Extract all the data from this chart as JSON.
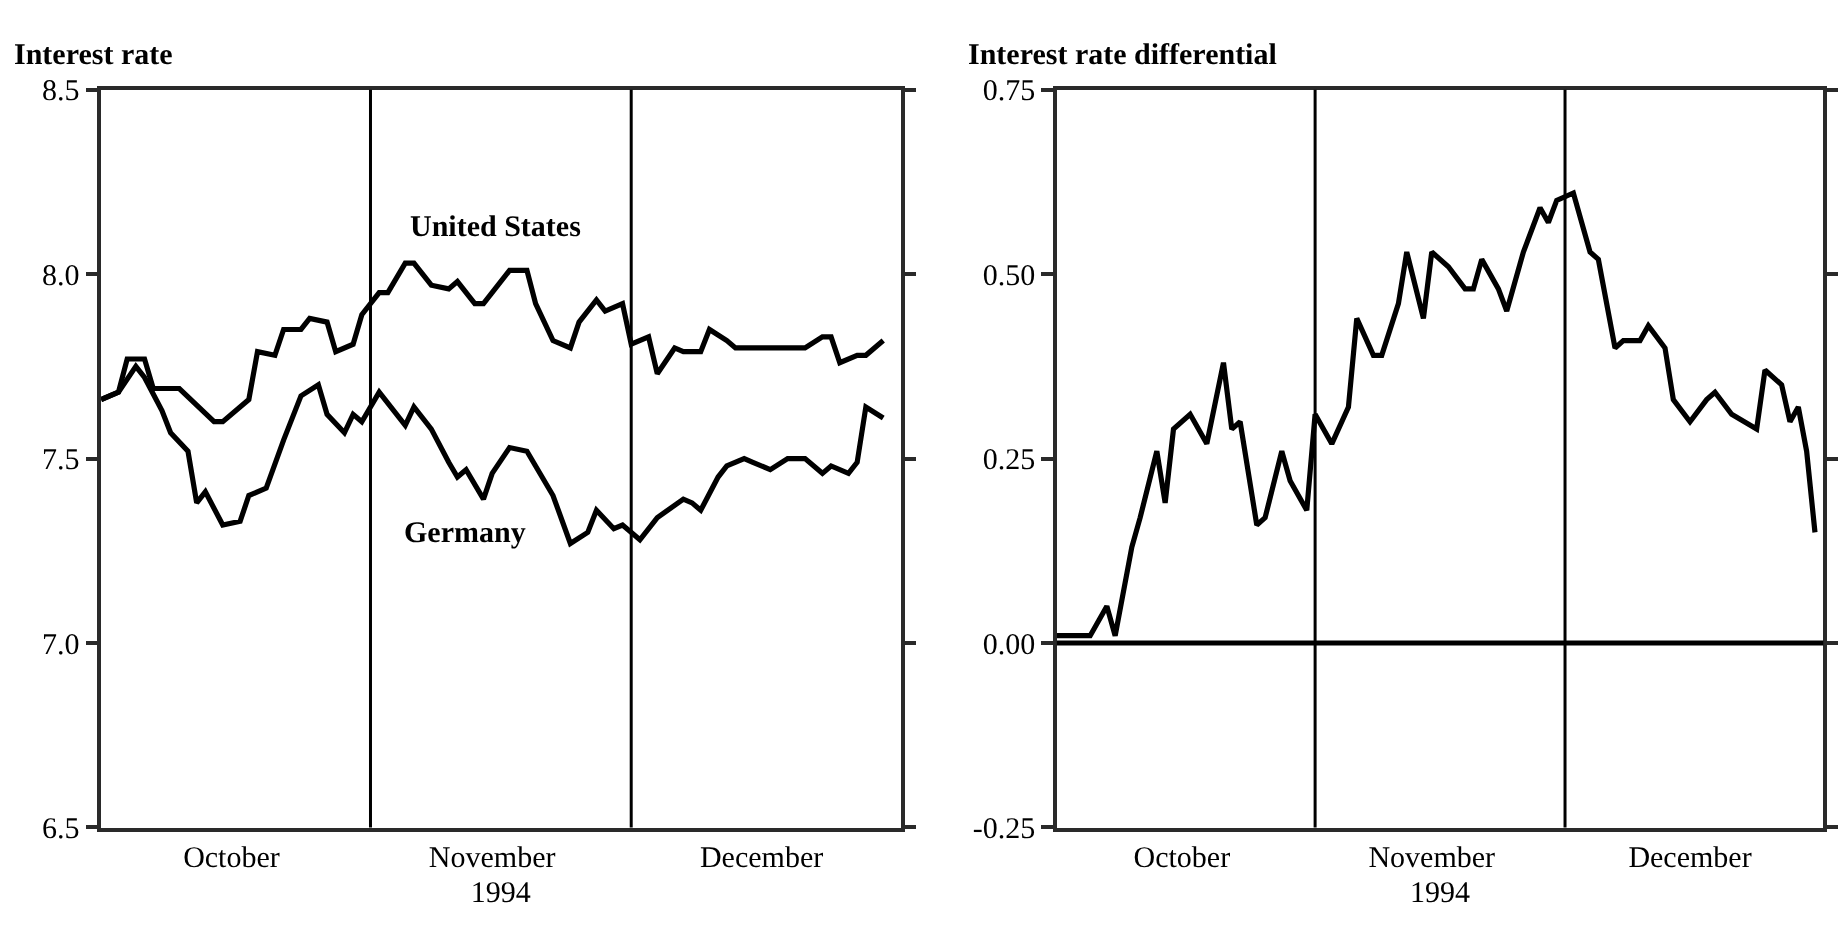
{
  "chart_data": [
    {
      "type": "line",
      "ylabel": "Interest rate",
      "xlabel": "1994",
      "xlim": [
        "1994-10-01",
        "1995-01-01"
      ],
      "xticks": [
        {
          "value": "1994-10-16",
          "label": "October"
        },
        {
          "value": "1994-11-15",
          "label": "November"
        },
        {
          "value": "1994-12-16",
          "label": "December"
        }
      ],
      "ylim": [
        6.5,
        8.5
      ],
      "yticks": [
        6.5,
        {
          "value": 7,
          "label": "7.0"
        },
        7.5,
        {
          "value": 8,
          "label": "8.0"
        },
        8.5
      ],
      "series": [
        {
          "color": "#000000",
          "x": [
            "1994-10-01",
            "1994-10-03",
            "1994-10-04",
            "1994-10-06",
            "1994-10-07",
            "1994-10-10",
            "1994-10-14",
            "1994-10-15",
            "1994-10-18",
            "1994-10-19",
            "1994-10-21",
            "1994-10-22",
            "1994-10-24",
            "1994-10-25",
            "1994-10-27",
            "1994-10-28",
            "1994-10-30",
            "1994-10-31",
            "1994-11-02",
            "1994-11-03",
            "1994-11-05",
            "1994-11-06",
            "1994-11-08",
            "1994-11-10",
            "1994-11-11",
            "1994-11-13",
            "1994-11-14",
            "1994-11-17",
            "1994-11-19",
            "1994-11-20",
            "1994-11-22",
            "1994-11-24",
            "1994-11-25",
            "1994-11-27",
            "1994-11-28",
            "1994-11-30",
            "1994-12-01",
            "1994-12-03",
            "1994-12-04",
            "1994-12-06",
            "1994-12-07",
            "1994-12-09",
            "1994-12-10",
            "1994-12-12",
            "1994-12-13",
            "1994-12-21",
            "1994-12-23",
            "1994-12-24",
            "1994-12-25",
            "1994-12-27",
            "1994-12-28",
            "1994-12-30"
          ],
          "values": [
            7.66,
            7.68,
            7.77,
            7.77,
            7.69,
            7.69,
            7.6,
            7.6,
            7.66,
            7.79,
            7.78,
            7.85,
            7.85,
            7.88,
            7.87,
            7.79,
            7.81,
            7.89,
            7.95,
            7.95,
            8.03,
            8.03,
            7.97,
            7.96,
            7.98,
            7.92,
            7.92,
            8.01,
            8.01,
            7.92,
            7.82,
            7.8,
            7.87,
            7.93,
            7.9,
            7.92,
            7.81,
            7.83,
            7.73,
            7.8,
            7.79,
            7.79,
            7.85,
            7.82,
            7.8,
            7.8,
            7.83,
            7.83,
            7.76,
            7.78,
            7.78,
            7.82
          ]
        },
        {
          "color": "#000000",
          "x": [
            "1994-10-01",
            "1994-10-03",
            "1994-10-05",
            "1994-10-06",
            "1994-10-08",
            "1994-10-09",
            "1994-10-11",
            "1994-10-12",
            "1994-10-13",
            "1994-10-15",
            "1994-10-17",
            "1994-10-18",
            "1994-10-20",
            "1994-10-22",
            "1994-10-24",
            "1994-10-26",
            "1994-10-27",
            "1994-10-29",
            "1994-10-30",
            "1994-10-31",
            "1994-11-02",
            "1994-11-05",
            "1994-11-06",
            "1994-11-08",
            "1994-11-10",
            "1994-11-11",
            "1994-11-12",
            "1994-11-14",
            "1994-11-15",
            "1994-11-17",
            "1994-11-19",
            "1994-11-20",
            "1994-11-22",
            "1994-11-24",
            "1994-11-26",
            "1994-11-27",
            "1994-11-29",
            "1994-11-30",
            "1994-12-02",
            "1994-12-04",
            "1994-12-07",
            "1994-12-08",
            "1994-12-09",
            "1994-12-11",
            "1994-12-12",
            "1994-12-14",
            "1994-12-15",
            "1994-12-17",
            "1994-12-19",
            "1994-12-21",
            "1994-12-23",
            "1994-12-24",
            "1994-12-26",
            "1994-12-27",
            "1994-12-28",
            "1994-12-30"
          ],
          "values": [
            7.66,
            7.68,
            7.75,
            7.72,
            7.63,
            7.57,
            7.52,
            7.38,
            7.41,
            7.32,
            7.33,
            7.4,
            7.42,
            7.55,
            7.67,
            7.7,
            7.62,
            7.57,
            7.62,
            7.6,
            7.68,
            7.59,
            7.64,
            7.58,
            7.49,
            7.45,
            7.47,
            7.39,
            7.46,
            7.53,
            7.52,
            7.48,
            7.4,
            7.27,
            7.3,
            7.36,
            7.31,
            7.32,
            7.28,
            7.34,
            7.39,
            7.38,
            7.36,
            7.45,
            7.48,
            7.5,
            7.49,
            7.47,
            7.5,
            7.5,
            7.46,
            7.48,
            7.46,
            7.49,
            7.64,
            7.61
          ]
        }
      ],
      "annotations": [
        "United States",
        "Germany"
      ],
      "ref_lines": [
        {
          "axis": "x",
          "value": "1994-11-01",
          "color": "#000000"
        },
        {
          "axis": "x",
          "value": "1994-12-01",
          "color": "#000000"
        }
      ]
    },
    {
      "type": "line",
      "ylabel": "Interest rate differential",
      "xlabel": "1994",
      "xlim": [
        "1994-10-01",
        "1995-01-01"
      ],
      "xticks": [
        {
          "value": "1994-10-16",
          "label": "October"
        },
        {
          "value": "1994-11-15",
          "label": "November"
        },
        {
          "value": "1994-12-16",
          "label": "December"
        }
      ],
      "ylim": [
        -0.25,
        0.75
      ],
      "yticks": [
        -0.25,
        {
          "value": 0,
          "label": "0.00"
        },
        0.25,
        {
          "value": 0.5,
          "label": "0.50"
        },
        0.75
      ],
      "series": [
        {
          "color": "#000000",
          "x": [
            "1994-10-01",
            "1994-10-05",
            "1994-10-07",
            "1994-10-08",
            "1994-10-10",
            "1994-10-11",
            "1994-10-13",
            "1994-10-14",
            "1994-10-15",
            "1994-10-17",
            "1994-10-19",
            "1994-10-21",
            "1994-10-22",
            "1994-10-23",
            "1994-10-25",
            "1994-10-26",
            "1994-10-28",
            "1994-10-29",
            "1994-10-31",
            "1994-11-01",
            "1994-11-03",
            "1994-11-05",
            "1994-11-06",
            "1994-11-08",
            "1994-11-09",
            "1994-11-11",
            "1994-11-12",
            "1994-11-14",
            "1994-11-15",
            "1994-11-17",
            "1994-11-19",
            "1994-11-20",
            "1994-11-21",
            "1994-11-23",
            "1994-11-24",
            "1994-11-26",
            "1994-11-28",
            "1994-11-29",
            "1994-11-30",
            "1994-12-02",
            "1994-12-04",
            "1994-12-05",
            "1994-12-07",
            "1994-12-08",
            "1994-12-10",
            "1994-12-11",
            "1994-12-13",
            "1994-12-14",
            "1994-12-16",
            "1994-12-18",
            "1994-12-19",
            "1994-12-21",
            "1994-12-24",
            "1994-12-25",
            "1994-12-27",
            "1994-12-28",
            "1994-12-29",
            "1994-12-30",
            "1994-12-31"
          ],
          "values": [
            0.01,
            0.01,
            0.05,
            0.01,
            0.13,
            0.17,
            0.26,
            0.19,
            0.29,
            0.31,
            0.27,
            0.38,
            0.29,
            0.3,
            0.16,
            0.17,
            0.26,
            0.22,
            0.18,
            0.31,
            0.27,
            0.32,
            0.44,
            0.39,
            0.39,
            0.46,
            0.53,
            0.44,
            0.53,
            0.51,
            0.48,
            0.48,
            0.52,
            0.48,
            0.45,
            0.53,
            0.59,
            0.57,
            0.6,
            0.61,
            0.53,
            0.52,
            0.4,
            0.41,
            0.41,
            0.43,
            0.4,
            0.33,
            0.3,
            0.33,
            0.34,
            0.31,
            0.29,
            0.37,
            0.35,
            0.3,
            0.32,
            0.26,
            0.15
          ]
        }
      ],
      "ref_lines": [
        {
          "axis": "y",
          "value": 0,
          "color": "#000000"
        },
        {
          "axis": "x",
          "value": "1994-11-01",
          "color": "#000000"
        },
        {
          "axis": "x",
          "value": "1994-12-01",
          "color": "#000000"
        }
      ]
    }
  ]
}
